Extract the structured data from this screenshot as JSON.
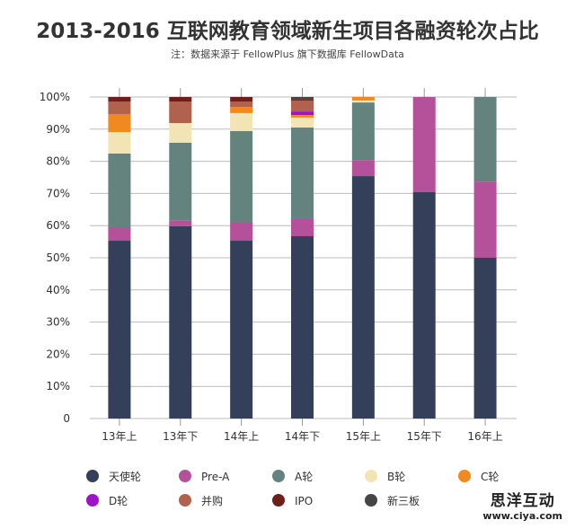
{
  "chart_data": {
    "type": "bar",
    "stacked": true,
    "title": "2013-2016 互联网教育领域新生项目各融资轮次占比",
    "subtitle": "注：数据来源于 FellowPlus 旗下数据库 FellowData",
    "xlabel": "",
    "ylabel": "",
    "ylim": [
      0,
      100
    ],
    "yticks": [
      "0",
      "10%",
      "20%",
      "30%",
      "40%",
      "50%",
      "60%",
      "70%",
      "80%",
      "90%",
      "100%"
    ],
    "grid": true,
    "legend_position": "bottom",
    "categories": [
      "13年上",
      "13年下",
      "14年上",
      "14年下",
      "15年上",
      "15年下",
      "16年上"
    ],
    "series": [
      {
        "name": "天使轮",
        "color": "#34405a",
        "values": [
          55.3,
          59.8,
          55.3,
          56.7,
          75.4,
          70.4,
          50.0
        ]
      },
      {
        "name": "Pre-A",
        "color": "#b5509a",
        "values": [
          4.2,
          1.7,
          5.6,
          5.6,
          5.0,
          29.6,
          23.7
        ]
      },
      {
        "name": "A轮",
        "color": "#64827e",
        "values": [
          22.9,
          24.3,
          28.5,
          28.2,
          17.9,
          0,
          26.3
        ]
      },
      {
        "name": "B轮",
        "color": "#f2e4b4",
        "values": [
          6.7,
          6.1,
          5.6,
          3.1,
          0.6,
          0,
          0
        ]
      },
      {
        "name": "C轮",
        "color": "#f0891f",
        "values": [
          5.6,
          0,
          1.9,
          0.8,
          1.1,
          0,
          0
        ]
      },
      {
        "name": "D轮",
        "color": "#a012c8",
        "values": [
          0,
          0,
          0,
          1.1,
          0,
          0,
          0
        ]
      },
      {
        "name": "并购",
        "color": "#b0624f",
        "values": [
          3.9,
          6.7,
          1.7,
          3.4,
          0,
          0,
          0
        ]
      },
      {
        "name": "IPO",
        "color": "#6e1f1c",
        "values": [
          1.4,
          1.4,
          1.4,
          0.5,
          0,
          0,
          0
        ]
      },
      {
        "name": "新三板",
        "color": "#454545",
        "values": [
          0,
          0,
          0,
          0.6,
          0,
          0,
          0
        ]
      }
    ]
  },
  "watermark": {
    "name": "思洋互动",
    "url": "www.ciya.com"
  }
}
